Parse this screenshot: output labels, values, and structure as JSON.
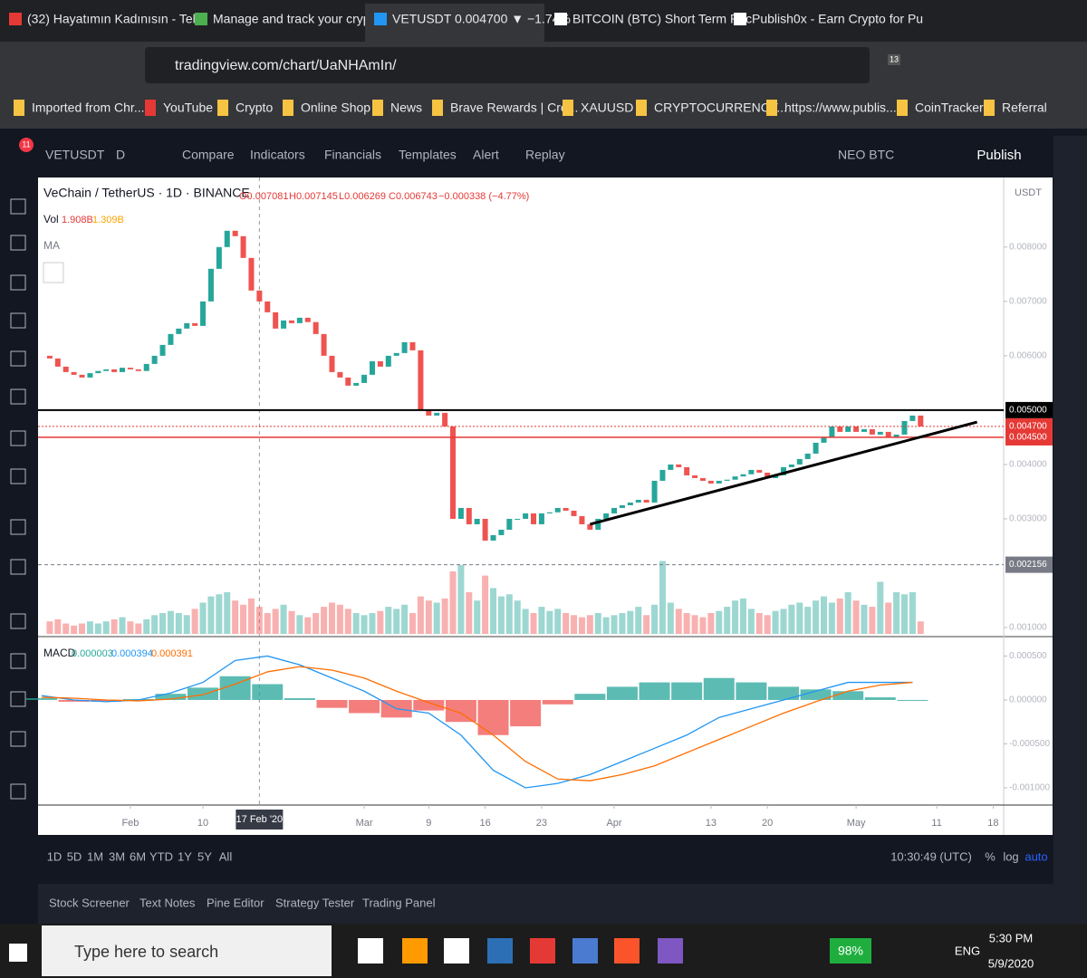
{
  "browser": {
    "tabs": [
      "(32) Hayatımın Kadınısın - Tel",
      "Manage and track your crypt",
      "VETUSDT 0.004700 ▼ −1.74%",
      "BITCOIN (BTC) Short Term Pric",
      "Publish0x - Earn Crypto for Pu"
    ],
    "address": "tradingview.com/chart/UaNHAmIn/",
    "badge": "13",
    "bookmarks": [
      "Imported from Chr...",
      "YouTube",
      "Crypto",
      "Online Shop",
      "News",
      "Brave Rewards | Cre...",
      "XAUUSD",
      "CRYPTOCURRENCY...",
      "https://www.publis...",
      "CoinTracker",
      "Referral"
    ]
  },
  "toolbar": {
    "symbol": "VETUSDT",
    "interval": "D",
    "buttons": [
      "Compare",
      "Indicators",
      "Financials",
      "Templates",
      "Alert",
      "Replay"
    ],
    "layout": "NEO BTC",
    "publish": "Publish",
    "notifications": "11"
  },
  "chart": {
    "type": "candlestick",
    "title": "VeChain / TetherUS · 1D · BINANCE",
    "ohlc_labels": [
      "O0.007081",
      "H0.007145",
      "L0.006269",
      "C0.006743",
      "−0.000338 (−4.77%)"
    ],
    "volume_label": "Vol",
    "volume_texts": [
      "1.908B",
      "1.309B"
    ],
    "ma_label": "MA",
    "currency": "USDT",
    "close": [
      0.006,
      0.00595,
      0.0058,
      0.0057,
      0.00565,
      0.0056,
      0.00568,
      0.00572,
      0.00575,
      0.0057,
      0.00578,
      0.00575,
      0.00572,
      0.00585,
      0.006,
      0.0062,
      0.0064,
      0.0065,
      0.0066,
      0.00655,
      0.007,
      0.0076,
      0.008,
      0.0083,
      0.0082,
      0.0078,
      0.0072,
      0.007,
      0.0068,
      0.0065,
      0.00665,
      0.0066,
      0.0067,
      0.00662,
      0.0064,
      0.006,
      0.0057,
      0.0056,
      0.00545,
      0.0055,
      0.00565,
      0.0059,
      0.0058,
      0.006,
      0.00605,
      0.00625,
      0.0061,
      0.005,
      0.0049,
      0.00495,
      0.0047,
      0.003,
      0.0032,
      0.0029,
      0.003,
      0.0026,
      0.0027,
      0.0028,
      0.003,
      0.003,
      0.0031,
      0.0029,
      0.0031,
      0.00312,
      0.0032,
      0.00315,
      0.00305,
      0.0029,
      0.0028,
      0.003,
      0.0031,
      0.0032,
      0.00325,
      0.0033,
      0.00335,
      0.0033,
      0.0037,
      0.0039,
      0.004,
      0.00395,
      0.0038,
      0.00375,
      0.0037,
      0.00365,
      0.0037,
      0.00372,
      0.00378,
      0.00382,
      0.0039,
      0.00385,
      0.00375,
      0.0038,
      0.00395,
      0.004,
      0.0041,
      0.0042,
      0.0044,
      0.0045,
      0.0047,
      0.0046,
      0.0047,
      0.0046,
      0.00465,
      0.00455,
      0.0046,
      0.0045,
      0.00455,
      0.0048,
      0.0049,
      0.0047
    ],
    "volume": [
      0.5,
      0.6,
      0.7,
      0.5,
      0.4,
      0.5,
      0.6,
      0.5,
      0.6,
      0.7,
      0.8,
      0.6,
      0.5,
      0.7,
      0.9,
      1.0,
      1.1,
      1.0,
      0.9,
      1.2,
      1.5,
      1.8,
      1.9,
      2.0,
      1.6,
      1.4,
      1.7,
      1.3,
      1.0,
      1.2,
      1.4,
      1.1,
      0.9,
      0.8,
      1.0,
      1.3,
      1.5,
      1.4,
      1.2,
      1.0,
      0.9,
      1.0,
      1.1,
      1.3,
      1.2,
      1.4,
      1.0,
      1.8,
      1.6,
      1.5,
      1.7,
      3.0,
      3.3,
      2.0,
      1.6,
      2.8,
      2.2,
      1.8,
      1.9,
      1.6,
      1.2,
      1.0,
      1.3,
      1.1,
      1.2,
      1.0,
      0.9,
      0.8,
      0.9,
      1.0,
      0.8,
      0.9,
      1.0,
      1.1,
      1.3,
      0.9,
      1.4,
      3.5,
      1.5,
      1.2,
      1.0,
      0.9,
      0.8,
      1.0,
      1.1,
      1.3,
      1.6,
      1.7,
      1.2,
      1.0,
      0.9,
      1.1,
      1.2,
      1.4,
      1.5,
      1.3,
      1.6,
      1.8,
      1.5,
      1.7,
      2.0,
      1.6,
      1.4,
      1.3,
      2.5,
      1.5,
      2.0,
      1.9,
      2.0,
      0.6
    ],
    "xlim": [
      -0.45,
      119.3
    ],
    "ylim": [
      0.00085,
      0.00928
    ],
    "yticks": [
      {
        "value": 0.001,
        "label": "0.001000"
      },
      {
        "value": 0.003,
        "label": "0.003000"
      },
      {
        "value": 0.004,
        "label": "0.004000"
      },
      {
        "value": 0.006,
        "label": "0.006000"
      },
      {
        "value": 0.007,
        "label": "0.007000"
      },
      {
        "value": 0.008,
        "label": "0.008000"
      }
    ],
    "xticks": [
      {
        "value": 11,
        "label": "Feb"
      },
      {
        "value": 20,
        "label": "10"
      },
      {
        "value": 40,
        "label": "Mar"
      },
      {
        "value": 48,
        "label": "9"
      },
      {
        "value": 55,
        "label": "16"
      },
      {
        "value": 62,
        "label": "23"
      },
      {
        "value": 71,
        "label": "Apr"
      },
      {
        "value": 83,
        "label": "13"
      },
      {
        "value": 90,
        "label": "20"
      },
      {
        "value": 101,
        "label": "May"
      },
      {
        "value": 111,
        "label": "11"
      },
      {
        "value": 118,
        "label": "18"
      }
    ],
    "crosshair": {
      "value": 27,
      "label": "17 Feb '20"
    },
    "levels": [
      {
        "value": 0.005,
        "label": "0.005000",
        "color": "#000000"
      },
      {
        "value": 0.0047,
        "label": "0.004700",
        "color": "#e53935"
      },
      {
        "value": 0.0045,
        "label": "0.004500",
        "color": "#e53935"
      },
      {
        "value": 0.002156,
        "label": "0.002156",
        "color": "#787b86"
      }
    ],
    "trendline": {
      "x": [
        68,
        116
      ],
      "y": [
        0.0029,
        0.00478
      ]
    },
    "up_color": "#26a69a",
    "down_color": "#ef5350",
    "macd": {
      "label": "MACD",
      "value_texts": [
        "0.000003",
        "0.000394",
        "0.000391"
      ],
      "ylim": [
        -0.001186,
        0.000711
      ],
      "yticks": [
        {
          "value": 0.0005,
          "label": "0.000500"
        },
        {
          "value": 0,
          "label": "0.000000"
        },
        {
          "value": -0.0005,
          "label": "-0.000500"
        },
        {
          "value": -0.001,
          "label": "-0.001000"
        }
      ],
      "macd": [
        5e-05,
        0,
        -2e-05,
        0,
        8e-05,
        0.0002,
        0.00045,
        0.0005,
        0.0004,
        0.00025,
        0.0001,
        -0.0001,
        -0.00015,
        -0.0004,
        -0.0008,
        -0.001,
        -0.00095,
        -0.00085,
        -0.0007,
        -0.00055,
        -0.0004,
        -0.0002,
        -0.0001,
        0,
        0.0001,
        0.0002,
        0.0002,
        0.0002
      ],
      "signal": [
        3e-05,
        2e-05,
        0,
        -1e-05,
        1e-05,
        6e-05,
        0.00018,
        0.00032,
        0.00038,
        0.00034,
        0.00025,
        0.0001,
        -3e-05,
        -0.00015,
        -0.0004,
        -0.0007,
        -0.0009,
        -0.00092,
        -0.00085,
        -0.00075,
        -0.0006,
        -0.00045,
        -0.0003,
        -0.00015,
        -2e-05,
        0.0001,
        0.00017,
        0.0002
      ],
      "hist": [
        2e-05,
        -2e-05,
        -2e-05,
        1e-05,
        7e-05,
        0.00014,
        0.00027,
        0.00018,
        2e-05,
        -9e-05,
        -0.00015,
        -0.0002,
        -0.00012,
        -0.00025,
        -0.0004,
        -0.0003,
        -5e-05,
        7e-05,
        0.00015,
        0.0002,
        0.0002,
        0.00025,
        0.0002,
        0.00015,
        0.00012,
        0.0001,
        3e-05,
        0
      ],
      "macd_color": "#2196f3",
      "signal_color": "#ff6d00"
    }
  },
  "bottom": {
    "ranges": [
      "1D",
      "5D",
      "1M",
      "3M",
      "6M",
      "YTD",
      "1Y",
      "5Y",
      "All"
    ],
    "clock": "10:30:49 (UTC)",
    "percent": "%",
    "log": "log",
    "auto": "auto",
    "panels": [
      "Stock Screener",
      "Text Notes",
      "Pine Editor",
      "Strategy Tester",
      "Trading Panel"
    ]
  },
  "taskbar": {
    "search": "Type here to search",
    "battery": "98%",
    "lang": "ENG",
    "time": "5:30 PM",
    "date": "5/9/2020"
  }
}
